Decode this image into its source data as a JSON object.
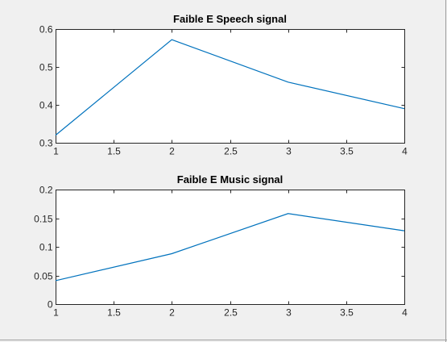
{
  "colors": {
    "background": "#f0f0f0",
    "axes_face": "#ffffff",
    "axes_edge": "#262626",
    "series_line": "#0072bd",
    "frame": "#a0a0a0"
  },
  "chart_data": [
    {
      "type": "line",
      "title": "Faible E Speech signal",
      "xlabel": "",
      "ylabel": "",
      "x": [
        1,
        2,
        3,
        4
      ],
      "series": [
        {
          "values": [
            0.32,
            0.572,
            0.46,
            0.39
          ]
        }
      ],
      "xlim": [
        1,
        4
      ],
      "ylim": [
        0.3,
        0.6
      ],
      "xticks": [
        1,
        1.5,
        2,
        2.5,
        3,
        3.5,
        4
      ],
      "xtick_labels": [
        "1",
        "1.5",
        "2",
        "2.5",
        "3",
        "3.5",
        "4"
      ],
      "yticks": [
        0.3,
        0.4,
        0.5,
        0.6
      ],
      "ytick_labels": [
        "0.3",
        "0.4",
        "0.5",
        "0.6"
      ],
      "grid": false,
      "legend": "none"
    },
    {
      "type": "line",
      "title": "Faible E Music signal",
      "xlabel": "",
      "ylabel": "",
      "x": [
        1,
        2,
        3,
        4
      ],
      "series": [
        {
          "values": [
            0.041,
            0.088,
            0.158,
            0.128
          ]
        }
      ],
      "xlim": [
        1,
        4
      ],
      "ylim": [
        0,
        0.2
      ],
      "xticks": [
        1,
        1.5,
        2,
        2.5,
        3,
        3.5,
        4
      ],
      "xtick_labels": [
        "1",
        "1.5",
        "2",
        "2.5",
        "3",
        "3.5",
        "4"
      ],
      "yticks": [
        0,
        0.05,
        0.1,
        0.15,
        0.2
      ],
      "ytick_labels": [
        "0",
        "0.05",
        "0.1",
        "0.15",
        "0.2"
      ],
      "grid": false,
      "legend": "none"
    }
  ]
}
